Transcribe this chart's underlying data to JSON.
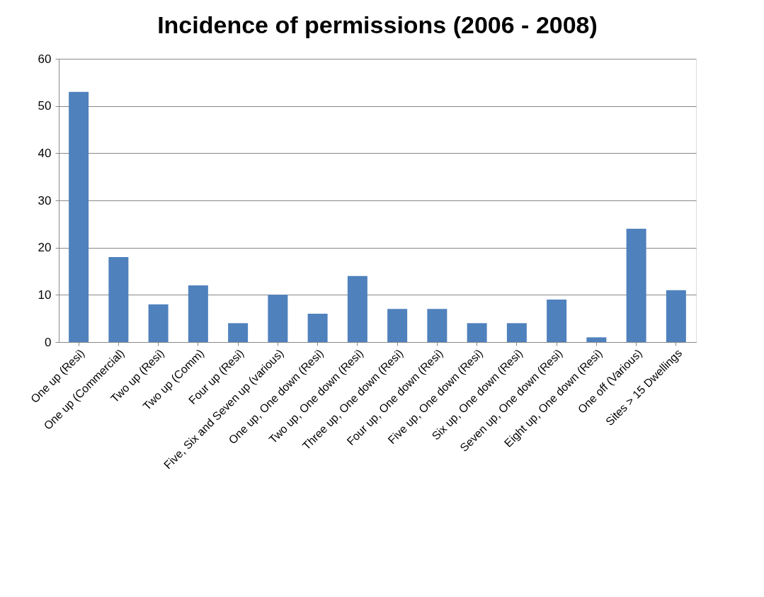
{
  "chart_data": {
    "type": "bar",
    "title": "Incidence of permissions (2006 - 2008)",
    "categories": [
      "One up (Resi)",
      "One up (Commercial)",
      "Two up (Resi)",
      "Two up (Comm)",
      "Four up (Resi)",
      "Five, Six and Seven up (various)",
      "One up, One down (Resi)",
      "Two up, One down (Resi)",
      "Three up, One down (Resi)",
      "Four up, One down (Resi)",
      "Five up, One down (Resi)",
      "Six up, One down (Resi)",
      "Seven up, One down (Resi)",
      "Eight up, One down (Resi)",
      "One off (Various)",
      "Sites > 15 Dwellings"
    ],
    "values": [
      53,
      18,
      8,
      12,
      4,
      10,
      6,
      14,
      7,
      7,
      4,
      4,
      9,
      1,
      24,
      11
    ],
    "color": "#4f81bd",
    "ylim": [
      0,
      60
    ],
    "yticks": [
      0,
      10,
      20,
      30,
      40,
      50,
      60
    ],
    "grid": "y"
  }
}
